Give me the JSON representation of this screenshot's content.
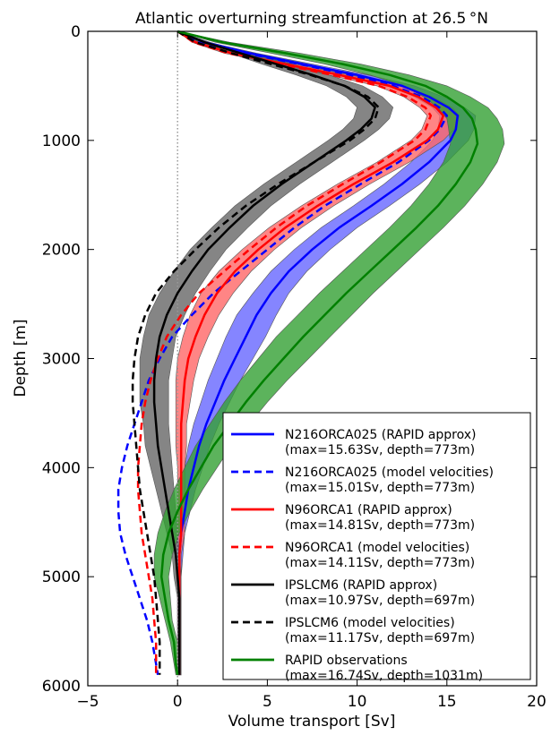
{
  "chart_data": {
    "type": "line",
    "title": "Atlantic overturning streamfunction at 26.5 °N",
    "xlabel": "Volume transport [Sv]",
    "ylabel": "Depth [m]",
    "xlim": [
      -5,
      20
    ],
    "ylim": [
      6000,
      0
    ],
    "y_inverted": true,
    "xticks": [
      "−5",
      "0",
      "5",
      "10",
      "15",
      "20"
    ],
    "yticks": [
      "0",
      "1000",
      "2000",
      "3000",
      "4000",
      "5000",
      "6000"
    ],
    "xtick_values": [
      -5,
      0,
      5,
      10,
      15,
      20
    ],
    "ytick_values": [
      0,
      1000,
      2000,
      3000,
      4000,
      5000,
      6000
    ],
    "grid": false,
    "legend_placement": "lower right",
    "zero_reference_line": {
      "x": 0,
      "style": "dotted",
      "color": "#999999"
    },
    "series": [
      {
        "name": "N216ORCA025 (RAPID approx)",
        "stats": "(max=15.63Sv, depth=773m)",
        "color": "#0000ff",
        "dash": "solid",
        "depth": [
          0,
          100,
          200,
          300,
          400,
          500,
          600,
          700,
          773,
          900,
          1000,
          1200,
          1400,
          1600,
          1800,
          2000,
          2200,
          2400,
          2600,
          2800,
          3000,
          3200,
          3400,
          3600,
          3800,
          4000,
          4200,
          4400,
          4600,
          4800,
          5000,
          5200,
          5400,
          5600,
          5800,
          5900
        ],
        "transport": [
          0,
          1.5,
          4.0,
          7.0,
          10.0,
          12.5,
          14.0,
          15.1,
          15.6,
          15.5,
          15.2,
          14.0,
          12.5,
          10.8,
          9.0,
          7.5,
          6.2,
          5.2,
          4.4,
          3.8,
          3.2,
          2.6,
          2.1,
          1.6,
          1.2,
          0.9,
          0.6,
          0.4,
          0.2,
          0.1,
          0.1,
          0.1,
          0.1,
          0.1,
          0.1,
          0.1
        ],
        "band_halfwidth": [
          0,
          0.2,
          0.4,
          0.5,
          0.6,
          0.7,
          0.8,
          0.9,
          1.0,
          1.0,
          1.0,
          1.0,
          1.0,
          1.0,
          1.0,
          1.0,
          1.0,
          1.0,
          1.1,
          1.1,
          1.0,
          0.9,
          0.8,
          0.7,
          0.6,
          0.5,
          0.4,
          0.3,
          0.2,
          0.2,
          0.1,
          0.1,
          0.1,
          0.1,
          0.1,
          0.1
        ],
        "band_color": "#6666ff"
      },
      {
        "name": "N216ORCA025 (model velocities)",
        "stats": "(max=15.01Sv, depth=773m)",
        "color": "#0000ff",
        "dash": "dashed",
        "depth": [
          0,
          100,
          200,
          300,
          400,
          500,
          600,
          700,
          773,
          900,
          1000,
          1200,
          1400,
          1600,
          1800,
          2000,
          2200,
          2400,
          2600,
          2800,
          3000,
          3200,
          3400,
          3600,
          3800,
          4000,
          4200,
          4400,
          4600,
          4800,
          5000,
          5200,
          5400,
          5600,
          5800,
          5900
        ],
        "transport": [
          0,
          1.3,
          3.8,
          6.8,
          9.6,
          12.0,
          13.6,
          14.6,
          15.0,
          14.6,
          14.0,
          12.3,
          10.2,
          8.2,
          6.5,
          5.0,
          3.5,
          2.0,
          0.8,
          -0.3,
          -1.0,
          -1.6,
          -2.0,
          -2.4,
          -2.8,
          -3.1,
          -3.3,
          -3.3,
          -3.2,
          -2.9,
          -2.5,
          -2.1,
          -1.7,
          -1.4,
          -1.2,
          -1.1
        ]
      },
      {
        "name": "N96ORCA1 (RAPID approx)",
        "stats": "(max=14.81Sv, depth=773m)",
        "color": "#ff0000",
        "dash": "solid",
        "depth": [
          0,
          100,
          200,
          300,
          400,
          500,
          600,
          700,
          773,
          900,
          1000,
          1200,
          1400,
          1600,
          1800,
          2000,
          2200,
          2400,
          2600,
          2800,
          3000,
          3200,
          3400,
          3600,
          3800,
          4000,
          4200,
          4400,
          4600,
          4800,
          5000,
          5200,
          5400,
          5600,
          5800,
          5900
        ],
        "transport": [
          0,
          1.0,
          3.0,
          6.0,
          9.0,
          11.8,
          13.4,
          14.4,
          14.8,
          14.5,
          13.9,
          12.0,
          9.8,
          7.8,
          6.0,
          4.5,
          3.2,
          2.2,
          1.5,
          1.0,
          0.6,
          0.4,
          0.3,
          0.2,
          0.2,
          0.2,
          0.2,
          0.2,
          0.2,
          0.1,
          0.1,
          0.1,
          0.1,
          0.1,
          0.1,
          0.1
        ],
        "band_halfwidth": [
          0,
          0.2,
          0.4,
          0.5,
          0.6,
          0.7,
          0.8,
          0.9,
          0.9,
          0.9,
          0.9,
          0.9,
          0.9,
          0.9,
          0.9,
          0.9,
          0.9,
          0.9,
          0.8,
          0.7,
          0.6,
          0.5,
          0.4,
          0.3,
          0.3,
          0.2,
          0.2,
          0.2,
          0.2,
          0.1,
          0.1,
          0.1,
          0.1,
          0.1,
          0.1,
          0.1
        ],
        "band_color": "#ff6666"
      },
      {
        "name": "N96ORCA1 (model velocities)",
        "stats": "(max=14.11Sv, depth=773m)",
        "color": "#ff0000",
        "dash": "dashed",
        "depth": [
          0,
          100,
          200,
          300,
          400,
          500,
          600,
          700,
          773,
          900,
          1000,
          1200,
          1400,
          1600,
          1800,
          2000,
          2200,
          2400,
          2600,
          2800,
          3000,
          3200,
          3400,
          3600,
          3800,
          4000,
          4200,
          4400,
          4600,
          4800,
          5000,
          5200,
          5400,
          5600,
          5800,
          5900
        ],
        "transport": [
          0,
          0.9,
          2.8,
          5.7,
          8.6,
          11.2,
          12.8,
          13.8,
          14.1,
          13.8,
          13.2,
          11.3,
          9.2,
          7.2,
          5.5,
          4.0,
          2.6,
          1.2,
          0.2,
          -0.6,
          -1.1,
          -1.5,
          -1.8,
          -2.0,
          -2.1,
          -2.2,
          -2.2,
          -2.1,
          -2.0,
          -1.8,
          -1.6,
          -1.4,
          -1.3,
          -1.2,
          -1.2,
          -1.2
        ]
      },
      {
        "name": "IPSLCM6 (RAPID approx)",
        "stats": "(max=10.97Sv, depth=697m)",
        "color": "#000000",
        "dash": "solid",
        "depth": [
          0,
          100,
          200,
          300,
          400,
          500,
          600,
          697,
          800,
          900,
          1000,
          1200,
          1400,
          1600,
          1800,
          2000,
          2200,
          2400,
          2600,
          2800,
          3000,
          3200,
          3400,
          3600,
          3800,
          4000,
          4200,
          4400,
          4600,
          4800,
          5000,
          5200,
          5400,
          5600,
          5800,
          5900
        ],
        "transport": [
          0,
          1.5,
          3.5,
          5.5,
          7.5,
          9.3,
          10.4,
          11.0,
          10.8,
          10.2,
          9.4,
          7.6,
          5.8,
          4.2,
          2.9,
          1.7,
          0.8,
          0.0,
          -0.6,
          -1.0,
          -1.2,
          -1.3,
          -1.3,
          -1.2,
          -1.1,
          -0.9,
          -0.7,
          -0.5,
          -0.3,
          -0.1,
          0.0,
          0.1,
          0.1,
          0.1,
          0.1,
          0.1
        ],
        "band_halfwidth": [
          0,
          0.3,
          0.6,
          0.8,
          0.9,
          1.0,
          1.0,
          1.0,
          1.0,
          1.0,
          1.0,
          1.0,
          1.0,
          1.0,
          1.0,
          1.0,
          1.0,
          1.0,
          1.0,
          0.9,
          0.9,
          0.8,
          0.8,
          0.7,
          0.7,
          0.6,
          0.5,
          0.4,
          0.3,
          0.2,
          0.2,
          0.1,
          0.1,
          0.1,
          0.1,
          0.1
        ],
        "band_color": "#666666"
      },
      {
        "name": "IPSLCM6 (model velocities)",
        "stats": "(max=11.17Sv, depth=697m)",
        "color": "#000000",
        "dash": "dashed",
        "depth": [
          0,
          100,
          200,
          300,
          400,
          500,
          600,
          697,
          800,
          900,
          1000,
          1200,
          1400,
          1600,
          1800,
          2000,
          2200,
          2400,
          2600,
          2800,
          3000,
          3200,
          3400,
          3600,
          3800,
          4000,
          4200,
          4400,
          4600,
          4800,
          5000,
          5200,
          5400,
          5600,
          5800,
          5900
        ],
        "transport": [
          0,
          1.0,
          3.0,
          5.2,
          7.4,
          9.3,
          10.6,
          11.2,
          11.0,
          10.4,
          9.6,
          7.6,
          5.6,
          3.8,
          2.3,
          1.0,
          -0.2,
          -1.2,
          -1.8,
          -2.2,
          -2.4,
          -2.5,
          -2.5,
          -2.4,
          -2.3,
          -2.2,
          -2.1,
          -1.9,
          -1.7,
          -1.5,
          -1.3,
          -1.2,
          -1.1,
          -1.0,
          -1.0,
          -1.0
        ]
      },
      {
        "name": "RAPID observations",
        "stats": "(max=16.74Sv, depth=1031m)",
        "color": "#008000",
        "dash": "solid",
        "depth": [
          0,
          100,
          200,
          300,
          400,
          500,
          600,
          700,
          800,
          900,
          1031,
          1200,
          1400,
          1600,
          1800,
          2000,
          2200,
          2400,
          2600,
          2800,
          3000,
          3200,
          3400,
          3600,
          3800,
          4000,
          4200,
          4400,
          4600,
          4800,
          5000,
          5200,
          5400,
          5600,
          5800,
          5900
        ],
        "transport": [
          0,
          2.5,
          6.0,
          9.2,
          11.8,
          13.8,
          15.0,
          15.9,
          16.4,
          16.6,
          16.7,
          16.3,
          15.5,
          14.5,
          13.3,
          12.0,
          10.7,
          9.4,
          8.2,
          7.0,
          5.9,
          4.8,
          3.8,
          2.9,
          2.0,
          1.3,
          0.6,
          0.0,
          -0.5,
          -0.8,
          -0.9,
          -0.7,
          -0.5,
          -0.2,
          -0.1,
          0.0
        ],
        "band_halfwidth": [
          0,
          0.4,
          0.8,
          1.0,
          1.1,
          1.2,
          1.3,
          1.4,
          1.4,
          1.5,
          1.5,
          1.5,
          1.5,
          1.5,
          1.5,
          1.5,
          1.5,
          1.5,
          1.5,
          1.5,
          1.4,
          1.3,
          1.2,
          1.1,
          1.0,
          0.9,
          0.8,
          0.7,
          0.6,
          0.5,
          0.4,
          0.3,
          0.2,
          0.2,
          0.1,
          0.1
        ],
        "band_color": "#33a033"
      }
    ]
  }
}
